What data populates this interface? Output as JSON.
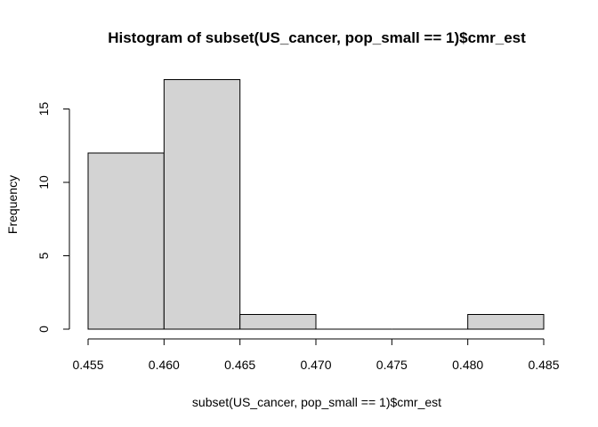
{
  "chart_data": {
    "type": "bar",
    "subtype": "histogram",
    "title": "Histogram of subset(US_cancer, pop_small == 1)$cmr_est",
    "xlabel": "subset(US_cancer, pop_small == 1)$cmr_est",
    "ylabel": "Frequency",
    "bins": [
      {
        "from": 0.455,
        "to": 0.46,
        "count": 12
      },
      {
        "from": 0.46,
        "to": 0.465,
        "count": 17
      },
      {
        "from": 0.465,
        "to": 0.47,
        "count": 1
      },
      {
        "from": 0.47,
        "to": 0.475,
        "count": 0
      },
      {
        "from": 0.475,
        "to": 0.48,
        "count": 0
      },
      {
        "from": 0.48,
        "to": 0.485,
        "count": 1
      }
    ],
    "xlim": [
      0.455,
      0.485
    ],
    "ylim": [
      0,
      17
    ],
    "x_ticks": [
      "0.455",
      "0.460",
      "0.465",
      "0.470",
      "0.475",
      "0.480",
      "0.485"
    ],
    "y_ticks": [
      "0",
      "5",
      "10",
      "15"
    ],
    "bar_color": "#d3d3d3",
    "grid": false
  }
}
